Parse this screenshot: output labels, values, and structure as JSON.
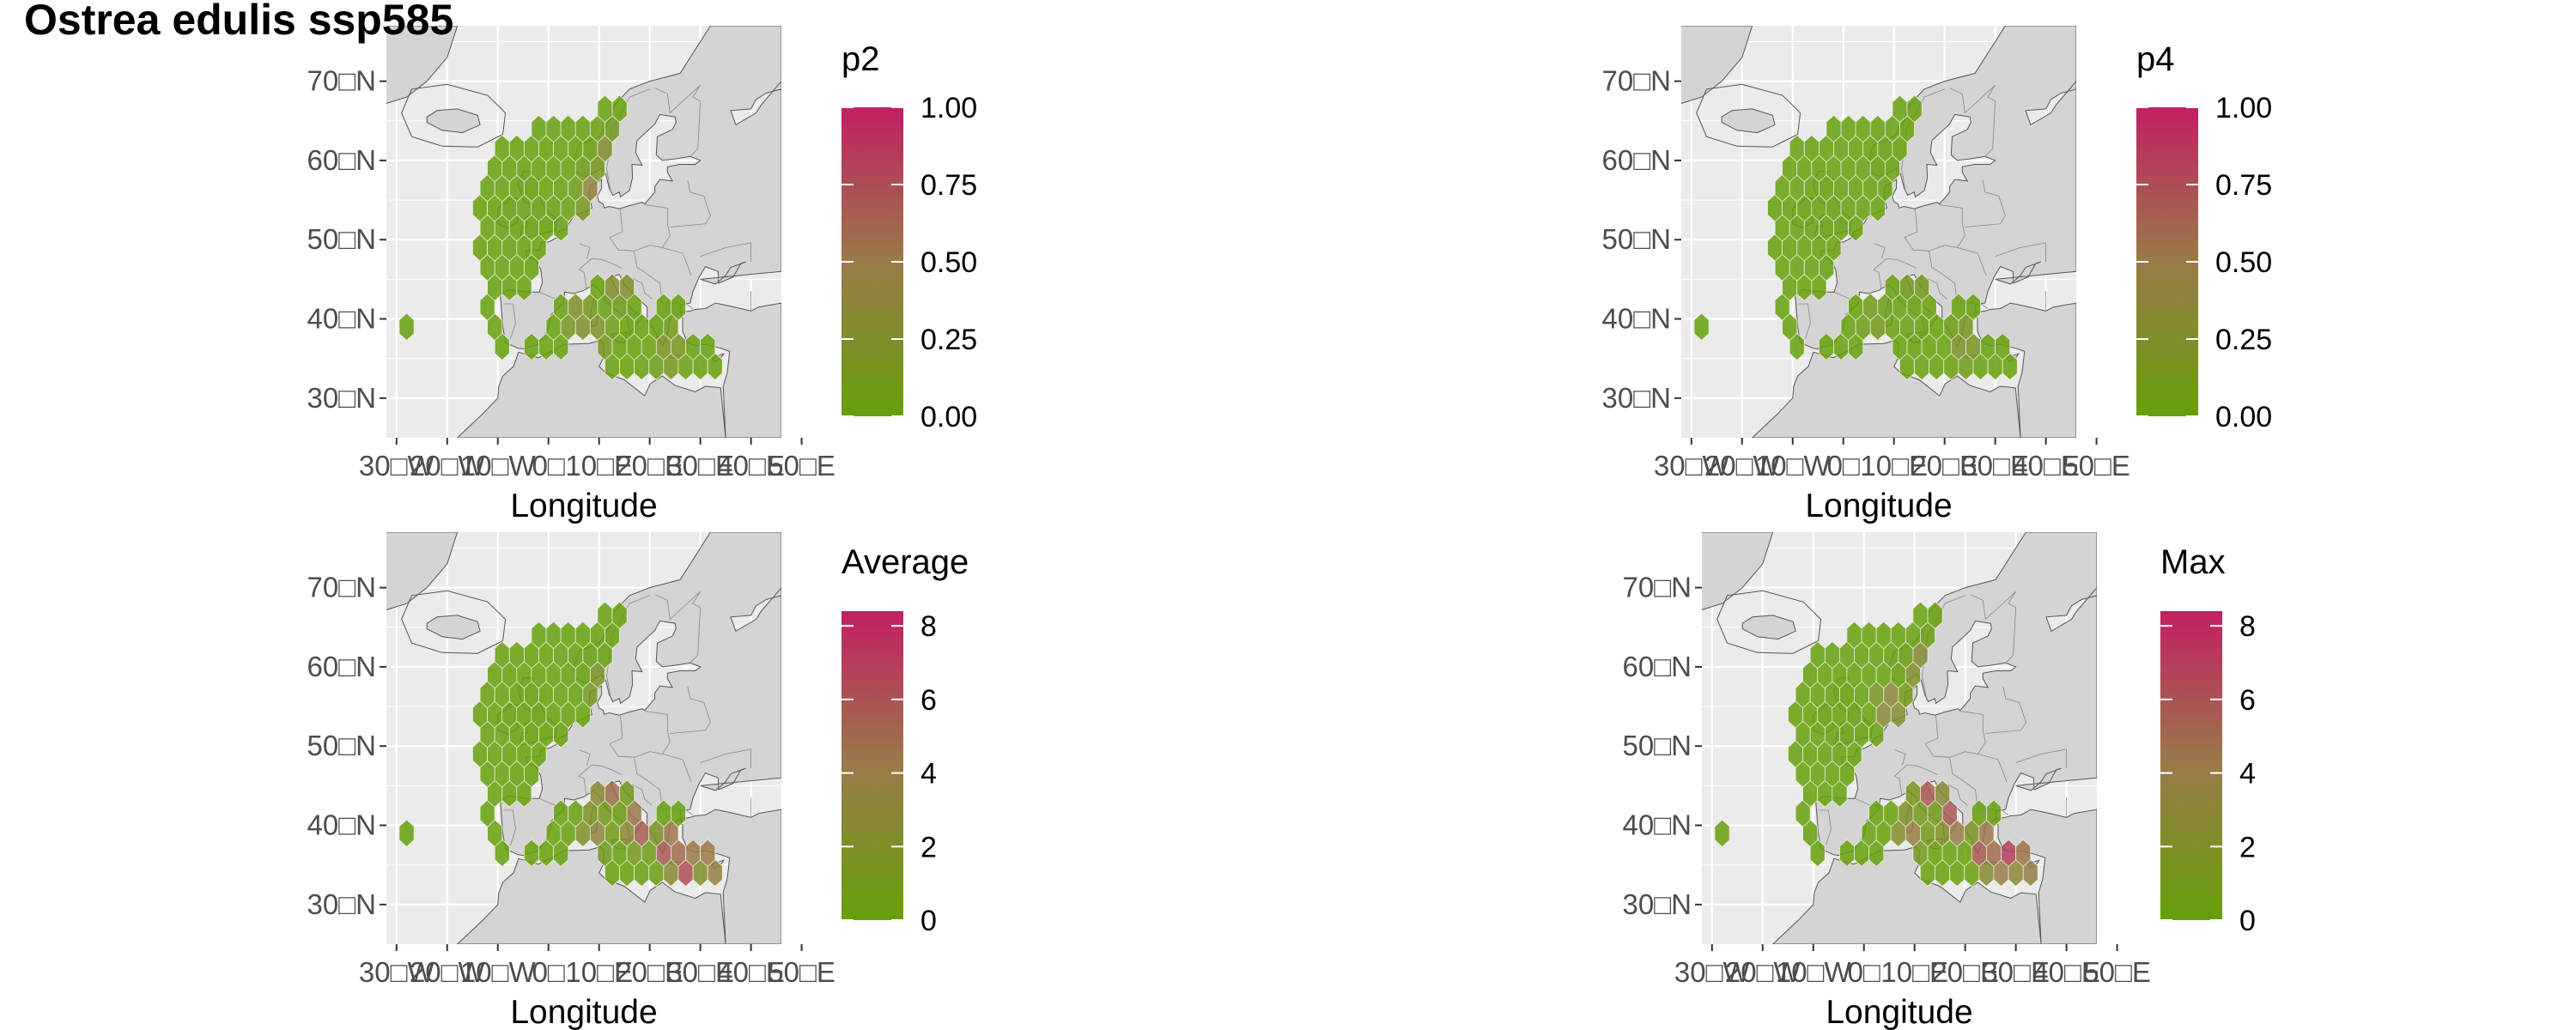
{
  "title": "Ostrea edulis ssp585",
  "colors": {
    "low": "#66a00a",
    "mid": "#9a7a49",
    "high": "#c21f63",
    "land": "#d4d4d4",
    "sea": "#ebebeb",
    "coast": "#555555",
    "grid": "#ffffff"
  },
  "chart_data": [
    {
      "type": "heatmap",
      "panel": "top-left",
      "legend_title": "p2",
      "xlabel": "Longitude",
      "ylabel": "",
      "x_tick_labels": [
        "30□W",
        "20□W",
        "10□W",
        "0□",
        "10□E",
        "20□E",
        "30□E",
        "40□E",
        "50□E"
      ],
      "y_tick_labels": [
        "70□N",
        "60□N",
        "50□N",
        "40□N",
        "30□N"
      ],
      "xlim": [
        -32,
        46
      ],
      "ylim": [
        25,
        77
      ],
      "legend_range": [
        0,
        1
      ],
      "legend_ticks": [
        "1.00",
        "0.75",
        "0.50",
        "0.25",
        "0.00"
      ],
      "hotspots": [
        [
          9,
          56,
          0.5
        ],
        [
          12,
          61,
          0.35
        ],
        [
          6,
          40,
          0.35
        ],
        [
          14,
          45,
          0.45
        ],
        [
          10,
          38,
          0.25
        ],
        [
          24,
          36,
          0.25
        ]
      ]
    },
    {
      "type": "heatmap",
      "panel": "top-right",
      "legend_title": "p4",
      "xlabel": "Longitude",
      "ylabel": "",
      "x_tick_labels": [
        "30□W",
        "20□W",
        "10□W",
        "0□",
        "10□E",
        "20□E",
        "30□E",
        "40□E",
        "50□E"
      ],
      "y_tick_labels": [
        "70□N",
        "60□N",
        "50□N",
        "40□N",
        "30□N"
      ],
      "xlim": [
        -32,
        46
      ],
      "ylim": [
        25,
        77
      ],
      "legend_range": [
        0,
        1
      ],
      "legend_ticks": [
        "1.00",
        "0.75",
        "0.50",
        "0.25",
        "0.00"
      ],
      "hotspots": [
        [
          24,
          37,
          0.3
        ],
        [
          14,
          45,
          0.2
        ],
        [
          6,
          40,
          0.15
        ]
      ]
    },
    {
      "type": "heatmap",
      "panel": "bottom-left",
      "legend_title": "Average",
      "xlabel": "Longitude",
      "ylabel": "",
      "x_tick_labels": [
        "30□W",
        "20□W",
        "10□W",
        "0□",
        "10□E",
        "20□E",
        "30□E",
        "40□E",
        "50□E"
      ],
      "y_tick_labels": [
        "70□N",
        "60□N",
        "50□N",
        "40□N",
        "30□N"
      ],
      "xlim": [
        -32,
        46
      ],
      "ylim": [
        25,
        77
      ],
      "legend_range": [
        0,
        8.4
      ],
      "legend_ticks": [
        "8",
        "6",
        "4",
        "2",
        "0"
      ],
      "hotspots": [
        [
          24,
          37,
          8.4
        ],
        [
          27,
          35,
          8.4
        ],
        [
          18,
          40,
          7.5
        ],
        [
          12,
          45,
          6.5
        ],
        [
          33,
          36,
          7.0
        ],
        [
          11,
          57,
          3.5
        ],
        [
          9,
          39,
          4.0
        ]
      ]
    },
    {
      "type": "heatmap",
      "panel": "bottom-right",
      "legend_title": "Max",
      "xlabel": "Longitude",
      "ylabel": "",
      "x_tick_labels": [
        "30□W",
        "20□W",
        "10□W",
        "0□",
        "10□E",
        "20□E",
        "30□E",
        "40□E",
        "50□E"
      ],
      "y_tick_labels": [
        "70□N",
        "60□N",
        "50□N",
        "40□N",
        "30□N"
      ],
      "xlim": [
        -32,
        46
      ],
      "ylim": [
        25,
        77
      ],
      "legend_range": [
        0,
        8.4
      ],
      "legend_ticks": [
        "8",
        "6",
        "4",
        "2",
        "0"
      ],
      "hotspots": [
        [
          24,
          37,
          8.4
        ],
        [
          28,
          36,
          8.4
        ],
        [
          18,
          41,
          8.0
        ],
        [
          13,
          45,
          7.5
        ],
        [
          33,
          36,
          7.5
        ],
        [
          5,
          55,
          4.5
        ],
        [
          10,
          50,
          3.5
        ],
        [
          12,
          60,
          4.5
        ],
        [
          9,
          39,
          4.5
        ]
      ]
    }
  ]
}
